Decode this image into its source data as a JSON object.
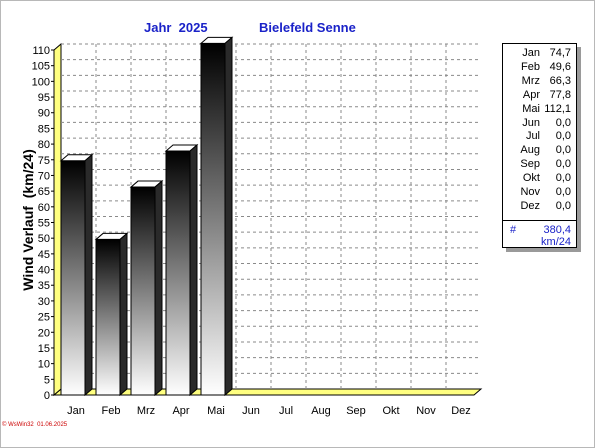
{
  "header": {
    "year_title": "Jahr  2025",
    "station_title": "Bielefeld Senne"
  },
  "footer": {
    "credit": "© WsWin32  01.06.2025"
  },
  "colors": {
    "title": "#1a22c8",
    "plot_floor": "#ffff80",
    "bar_dark": "#000000",
    "bar_light": "#ffffff",
    "total_text": "#1a22c8",
    "footer_text": "#cc0000"
  },
  "legend": {
    "rows": [
      {
        "month": "Jan",
        "value": "74,7"
      },
      {
        "month": "Feb",
        "value": "49,6"
      },
      {
        "month": "Mrz",
        "value": "66,3"
      },
      {
        "month": "Apr",
        "value": "77,8"
      },
      {
        "month": "Mai",
        "value": "112,1"
      },
      {
        "month": "Jun",
        "value": "0,0"
      },
      {
        "month": "Jul",
        "value": "0,0"
      },
      {
        "month": "Aug",
        "value": "0,0"
      },
      {
        "month": "Sep",
        "value": "0,0"
      },
      {
        "month": "Okt",
        "value": "0,0"
      },
      {
        "month": "Nov",
        "value": "0,0"
      },
      {
        "month": "Dez",
        "value": "0,0"
      }
    ],
    "total_symbol": "#",
    "total_value": "380,4",
    "total_unit": "km/24"
  },
  "chart_data": {
    "type": "bar",
    "title": "Jahr  2025",
    "subtitle": "Bielefeld Senne",
    "ylabel": "Wind Verlauf  (km/24)",
    "xlabel": "",
    "categories": [
      "Jan",
      "Feb",
      "Mrz",
      "Apr",
      "Mai",
      "Jun",
      "Jul",
      "Aug",
      "Sep",
      "Okt",
      "Nov",
      "Dez"
    ],
    "values": [
      74.7,
      49.6,
      66.3,
      77.8,
      112.1,
      0,
      0,
      0,
      0,
      0,
      0,
      0
    ],
    "ylim": [
      0,
      110
    ],
    "ytick_step": 5,
    "grid": true,
    "legend_position": "right"
  }
}
